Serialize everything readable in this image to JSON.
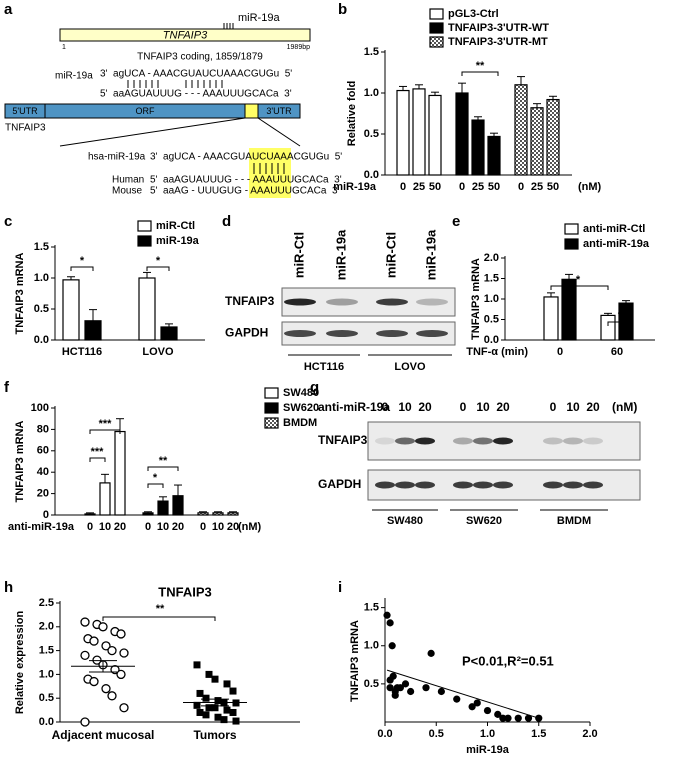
{
  "panel_labels": [
    "a",
    "b",
    "c",
    "d",
    "e",
    "f",
    "g",
    "h",
    "i"
  ],
  "diagram": {
    "gene": "TNFAIP3",
    "mir_site": "miR-19a",
    "start": "1",
    "end": "1989bp",
    "coding": "TNFAIP3 coding, 1859/1879",
    "mir_label": "miR-19a",
    "align_top": "3'  agUCA - AAACGUAUCUAAACGUGu  5'",
    "align_bottom": "5'  aaAGUAUUUG - - - AAAUUUGCACa  3'",
    "utr5": "5'UTR",
    "orf": "ORF",
    "utr3": "3'UTR",
    "gene_label": "TNFAIP3",
    "hsa_label": "hsa-miR-19a",
    "hsa_seq": "3'  agUCA - AAACGUAUCUAAACGUGu  5'",
    "human_label": "Human",
    "human_seq": "5'  aaAGUAUUUG - - - AAAUUUGCACa  3'",
    "mouse_label": "Mouse",
    "mouse_seq": "5'  aaAG - UUUGUG - AAAUUUGCACa  3'"
  },
  "blot_d": {
    "lanes": [
      "miR-Ctl",
      "miR-19a",
      "miR-Ctl",
      "miR-19a"
    ],
    "rows": [
      "TNFAIP3",
      "GAPDH"
    ],
    "groups": [
      "HCT116",
      "LOVO"
    ]
  },
  "blot_g": {
    "treatment": "anti-miR-19a",
    "doses": [
      "0",
      "10",
      "20"
    ],
    "unit": "(nM)",
    "rows": [
      "TNFAIP3",
      "GAPDH"
    ],
    "groups": [
      "SW480",
      "SW620",
      "BMDM"
    ]
  },
  "chart_data": [
    {
      "type": "bar",
      "ylabel": "Relative fold",
      "xlabel": "miR-19a",
      "xunit": "(nM)",
      "categories": [
        "0",
        "25",
        "50"
      ],
      "series": [
        {
          "name": "pGL3-Ctrl",
          "color": "#ffffff",
          "values": [
            1.03,
            1.05,
            0.97
          ],
          "errors": [
            0.05,
            0.05,
            0.04
          ]
        },
        {
          "name": "TNFAIP3-3'UTR-WT",
          "color": "#000000",
          "values": [
            1.0,
            0.67,
            0.47
          ],
          "errors": [
            0.12,
            0.04,
            0.04
          ]
        },
        {
          "name": "TNFAIP3-3'UTR-MT",
          "color": "#9a9a9a",
          "pattern": "checker",
          "values": [
            1.1,
            0.82,
            0.92
          ],
          "errors": [
            0.1,
            0.05,
            0.04
          ]
        }
      ],
      "ylim": [
        0,
        1.5
      ],
      "yticks": [
        {
          "value": 0,
          "label": "0.0"
        },
        0.5,
        {
          "value": 1,
          "label": "1.0"
        },
        1.5
      ],
      "annotations": [
        "**"
      ]
    },
    {
      "type": "bar",
      "ylabel": "TNFAIP3 mRNA",
      "categories": [
        "HCT116",
        "LOVO"
      ],
      "series": [
        {
          "name": "miR-Ctl",
          "color": "#ffffff",
          "values": [
            0.97,
            1.0
          ],
          "errors": [
            0.05,
            0.09
          ]
        },
        {
          "name": "miR-19a",
          "color": "#000000",
          "values": [
            0.31,
            0.21
          ],
          "errors": [
            0.18,
            0.05
          ]
        }
      ],
      "ylim": [
        0,
        1.5
      ],
      "yticks": [
        {
          "value": 0,
          "label": "0.0"
        },
        0.5,
        {
          "value": 1,
          "label": "1.0"
        },
        1.5
      ],
      "annotations": [
        "*",
        "*"
      ]
    },
    {
      "type": "bar",
      "ylabel": "TNFAIP3 mRNA",
      "xlabel": "TNF-α (min)",
      "categories": [
        "0",
        "60"
      ],
      "series": [
        {
          "name": "anti-miR-Ctl",
          "color": "#ffffff",
          "values": [
            1.05,
            0.6
          ],
          "errors": [
            0.1,
            0.05
          ]
        },
        {
          "name": "anti-miR-19a",
          "color": "#000000",
          "values": [
            1.48,
            0.9
          ],
          "errors": [
            0.12,
            0.06
          ]
        }
      ],
      "ylim": [
        0,
        2
      ],
      "yticks": [
        {
          "value": 0,
          "label": "0.0"
        },
        0.5,
        {
          "value": 1,
          "label": "1.0"
        },
        1.5,
        {
          "value": 2,
          "label": "2.0"
        }
      ],
      "annotations": [
        "*",
        "*"
      ]
    },
    {
      "type": "bar",
      "ylabel": "TNFAIP3 mRNA",
      "xlabel": "anti-miR-19a",
      "xunit": "(nM)",
      "categories": [
        "0",
        "10",
        "20"
      ],
      "series": [
        {
          "name": "SW480",
          "color": "#ffffff",
          "values": [
            1,
            30,
            78
          ],
          "errors": [
            1,
            8,
            12
          ]
        },
        {
          "name": "SW620",
          "color": "#000000",
          "values": [
            2,
            13,
            18
          ],
          "errors": [
            1,
            4,
            10
          ]
        },
        {
          "name": "BMDM",
          "color": "#9a9a9a",
          "pattern": "checker",
          "values": [
            2,
            2,
            2
          ],
          "errors": [
            1,
            1,
            1
          ]
        }
      ],
      "ylim": [
        0,
        100
      ],
      "yticks": [
        0,
        20,
        40,
        60,
        80,
        100
      ],
      "annotations": [
        "***",
        "***",
        "*",
        "**"
      ]
    },
    {
      "type": "dot",
      "title": "TNFAIP3",
      "ylabel": "Relative expression",
      "categories": [
        "Adjacent mucosal",
        "Tumors"
      ],
      "markers": [
        "circle-open",
        "square-filled"
      ],
      "groups": [
        {
          "values": [
            2.1,
            2.05,
            2.0,
            1.9,
            1.85,
            1.75,
            1.7,
            1.6,
            1.5,
            1.45,
            1.4,
            1.3,
            1.2,
            1.1,
            1.0,
            0.9,
            0.85,
            0.7,
            0.55,
            0.3,
            0.0
          ],
          "mean": 1.17,
          "sem": 0.12
        },
        {
          "values": [
            1.2,
            1.0,
            0.9,
            0.8,
            0.65,
            0.6,
            0.5,
            0.45,
            0.4,
            0.4,
            0.35,
            0.3,
            0.3,
            0.25,
            0.2,
            0.2,
            0.15,
            0.1,
            0.05,
            0.02
          ],
          "mean": 0.41,
          "sem": 0.07
        }
      ],
      "ylim": [
        0,
        2.5
      ],
      "yticks": [
        {
          "value": 0,
          "label": "0.0"
        },
        0.5,
        {
          "value": 1,
          "label": "1.0"
        },
        1.5,
        {
          "value": 2,
          "label": "2.0"
        },
        2.5
      ],
      "annotations": [
        "**"
      ]
    },
    {
      "type": "scatter",
      "xlabel": "miR-19a",
      "ylabel": "TNFAIP3 mRNA",
      "x": [
        0.02,
        0.05,
        0.07,
        0.08,
        0.1,
        0.12,
        0.05,
        0.15,
        0.2,
        0.25,
        0.4,
        0.45,
        0.55,
        0.7,
        0.85,
        0.9,
        1.0,
        1.1,
        1.15,
        1.2,
        1.3,
        1.4,
        1.5,
        0.05,
        0.1
      ],
      "y": [
        1.4,
        1.3,
        1.0,
        0.6,
        0.4,
        0.45,
        0.55,
        0.45,
        0.5,
        0.4,
        0.45,
        0.9,
        0.4,
        0.3,
        0.2,
        0.25,
        0.15,
        0.1,
        0.05,
        0.05,
        0.05,
        0.05,
        0.05,
        0.45,
        0.35
      ],
      "fit": {
        "x": [
          0.02,
          1.5
        ],
        "y": [
          0.68,
          0.05
        ]
      },
      "xlim": [
        0,
        2
      ],
      "xticks": [
        {
          "value": 0,
          "label": "0.0"
        },
        0.5,
        {
          "value": 1,
          "label": "1.0"
        },
        1.5,
        {
          "value": 2,
          "label": "2.0"
        }
      ],
      "ylim": [
        0,
        1.6
      ],
      "yticks": [
        0.5,
        {
          "value": 1,
          "label": "1.0"
        },
        1.5
      ],
      "annotations": [
        "P<0.01,R²=0.51"
      ]
    }
  ]
}
